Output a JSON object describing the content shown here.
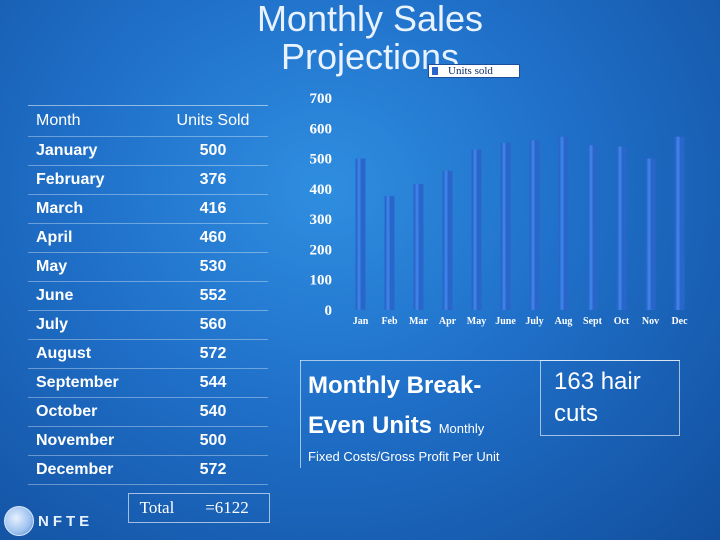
{
  "title": "Monthly Sales Projections",
  "table": {
    "header_month": "Month",
    "header_units": "Units Sold",
    "rows": [
      {
        "month": "January",
        "units": "500"
      },
      {
        "month": "February",
        "units": "376"
      },
      {
        "month": "March",
        "units": "416"
      },
      {
        "month": "April",
        "units": "460"
      },
      {
        "month": "May",
        "units": "530"
      },
      {
        "month": "June",
        "units": "552"
      },
      {
        "month": "July",
        "units": "560"
      },
      {
        "month": "August",
        "units": "572"
      },
      {
        "month": "September",
        "units": "544"
      },
      {
        "month": "October",
        "units": "540"
      },
      {
        "month": "November",
        "units": "500"
      },
      {
        "month": "December",
        "units": "572"
      }
    ],
    "total_label": "Total",
    "total_value": "=6122"
  },
  "chart_data": {
    "type": "bar",
    "categories": [
      "Jan",
      "Feb",
      "Mar",
      "Apr",
      "May",
      "June",
      "July",
      "Aug",
      "Sept",
      "Oct",
      "Nov",
      "Dec"
    ],
    "series": [
      {
        "name": "Units sold",
        "values": [
          500,
          376,
          416,
          460,
          530,
          552,
          560,
          572,
          544,
          540,
          500,
          572
        ]
      }
    ],
    "ylim": [
      0,
      700
    ],
    "yticks": [
      "0",
      "100",
      "200",
      "300",
      "400",
      "500",
      "600",
      "700"
    ],
    "grid": false,
    "legend": "top-left",
    "colors": {
      "bar": "#2a66c9",
      "bar_highlight": "#3b82e6",
      "axis_text": "#ffffff"
    }
  },
  "breakeven": {
    "title_main": "Monthly Break-Even Units",
    "title_small": "Monthly",
    "subtitle": "Fixed Costs/Gross Profit Per Unit",
    "value": "163 hair cuts"
  },
  "logo": {
    "text": "NFTE",
    "icon": "globe-icon"
  }
}
